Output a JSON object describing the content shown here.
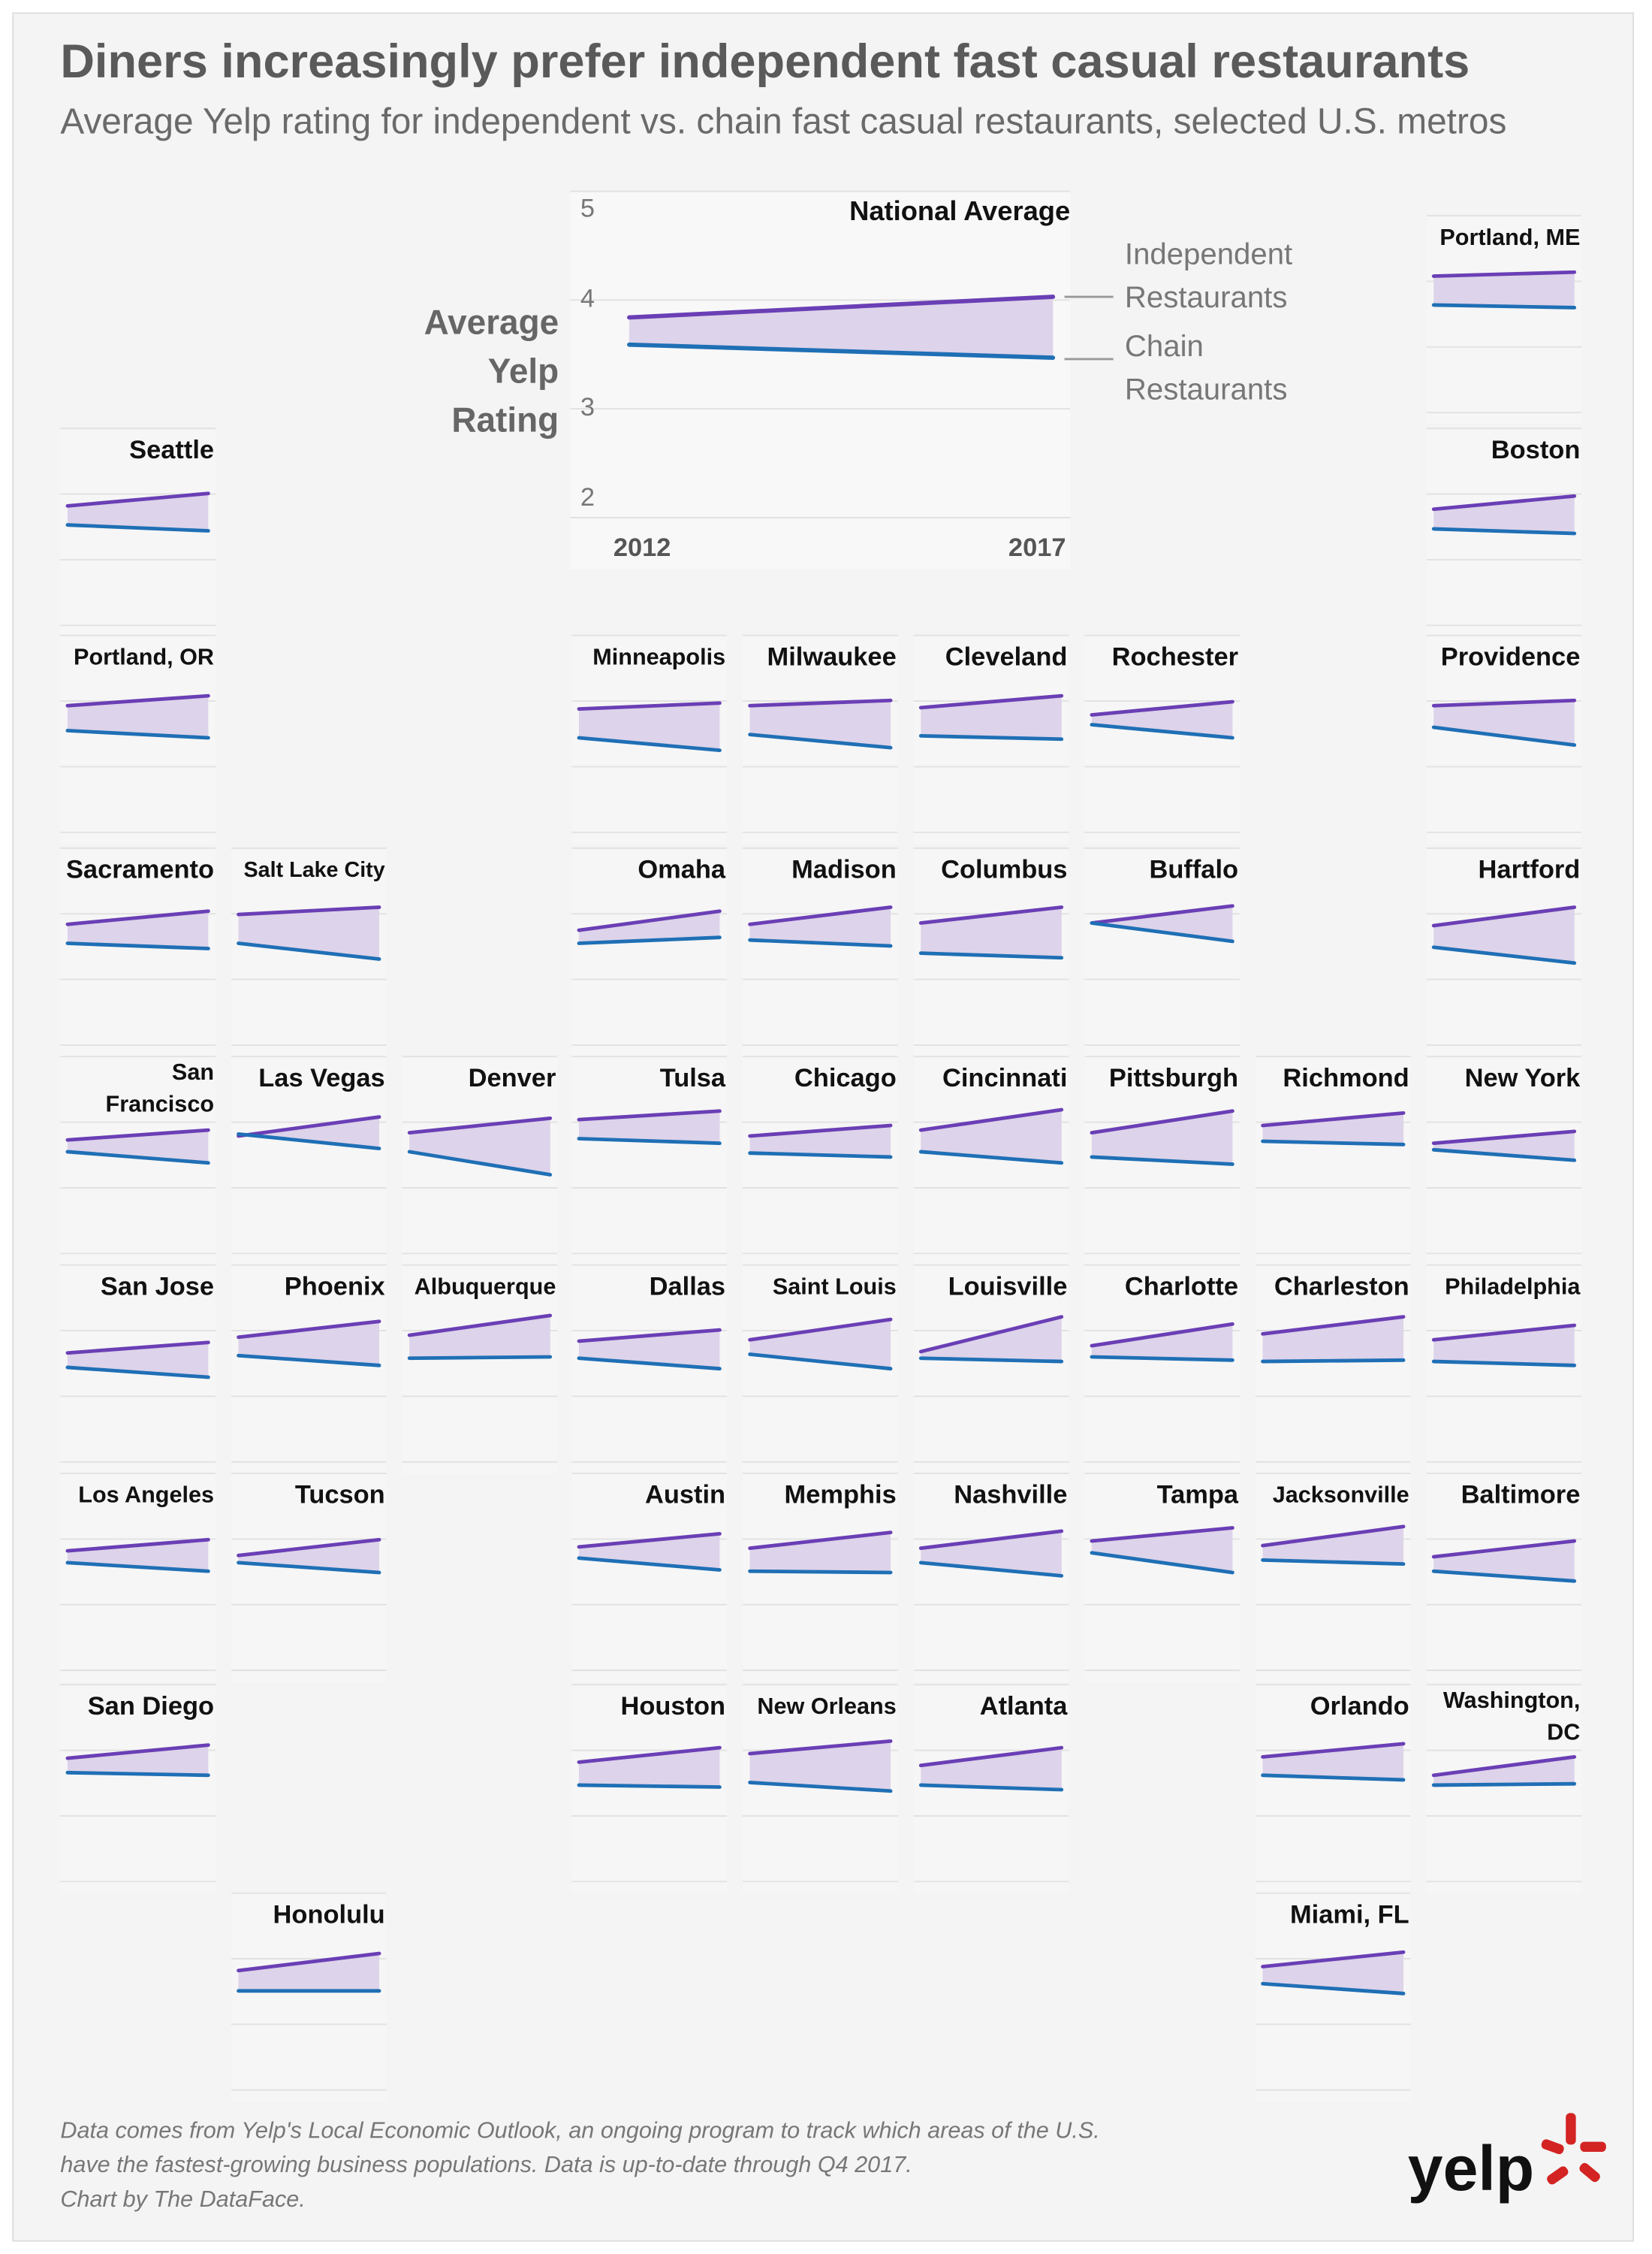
{
  "chart_data": {
    "type": "line",
    "title": "Diners increasingly prefer independent fast casual restaurants",
    "subtitle": "Average Yelp rating for independent vs. chain fast casual restaurants, selected U.S. metros",
    "ylabel": "Average Yelp Rating",
    "x": [
      "2012",
      "2017"
    ],
    "ylim": [
      2,
      5
    ],
    "yticks": [
      2,
      3,
      4,
      5
    ],
    "series": [
      {
        "name": "Independent Restaurants",
        "color": "#6a3fb5"
      },
      {
        "name": "Chain Restaurants",
        "color": "#1f6fb5"
      }
    ],
    "panels": [
      {
        "title": "National Average",
        "values": [
          [
            3.84,
            4.03
          ],
          [
            3.59,
            3.47
          ]
        ]
      },
      {
        "title": "Portland, ME",
        "values": [
          [
            4.08,
            4.14
          ],
          [
            3.64,
            3.6
          ]
        ]
      },
      {
        "title": "Seattle",
        "values": [
          [
            3.82,
            4.01
          ],
          [
            3.53,
            3.44
          ]
        ]
      },
      {
        "title": "Boston",
        "values": [
          [
            3.77,
            3.97
          ],
          [
            3.47,
            3.4
          ]
        ]
      },
      {
        "title": "Portland, OR",
        "values": [
          [
            3.93,
            4.08
          ],
          [
            3.55,
            3.44
          ]
        ]
      },
      {
        "title": "Minneapolis",
        "values": [
          [
            3.88,
            3.97
          ],
          [
            3.44,
            3.25
          ]
        ]
      },
      {
        "title": "Milwaukee",
        "values": [
          [
            3.93,
            4.01
          ],
          [
            3.49,
            3.29
          ]
        ]
      },
      {
        "title": "Cleveland",
        "values": [
          [
            3.9,
            4.08
          ],
          [
            3.47,
            3.42
          ]
        ]
      },
      {
        "title": "Rochester",
        "values": [
          [
            3.79,
            3.99
          ],
          [
            3.64,
            3.44
          ]
        ]
      },
      {
        "title": "Providence",
        "values": [
          [
            3.93,
            4.01
          ],
          [
            3.6,
            3.33
          ]
        ]
      },
      {
        "title": "Sacramento",
        "values": [
          [
            3.84,
            4.04
          ],
          [
            3.55,
            3.47
          ]
        ]
      },
      {
        "title": "Salt Lake City",
        "values": [
          [
            3.99,
            4.1
          ],
          [
            3.55,
            3.31
          ]
        ]
      },
      {
        "title": "Omaha",
        "values": [
          [
            3.75,
            4.04
          ],
          [
            3.55,
            3.64
          ]
        ]
      },
      {
        "title": "Madison",
        "values": [
          [
            3.84,
            4.1
          ],
          [
            3.6,
            3.51
          ]
        ]
      },
      {
        "title": "Columbus",
        "values": [
          [
            3.86,
            4.1
          ],
          [
            3.4,
            3.33
          ]
        ]
      },
      {
        "title": "Buffalo",
        "values": [
          [
            3.86,
            4.12
          ],
          [
            3.86,
            3.58
          ]
        ]
      },
      {
        "title": "Hartford",
        "values": [
          [
            3.82,
            4.1
          ],
          [
            3.49,
            3.25
          ]
        ]
      },
      {
        "title": "San Francisco",
        "values": [
          [
            3.73,
            3.88
          ],
          [
            3.55,
            3.38
          ]
        ]
      },
      {
        "title": "Las Vegas",
        "values": [
          [
            3.79,
            4.08
          ],
          [
            3.82,
            3.6
          ]
        ]
      },
      {
        "title": "Denver",
        "values": [
          [
            3.84,
            4.06
          ],
          [
            3.55,
            3.2
          ]
        ]
      },
      {
        "title": "Tulsa",
        "values": [
          [
            4.04,
            4.17
          ],
          [
            3.75,
            3.68
          ]
        ]
      },
      {
        "title": "Chicago",
        "values": [
          [
            3.79,
            3.95
          ],
          [
            3.53,
            3.47
          ]
        ]
      },
      {
        "title": "Cincinnati",
        "values": [
          [
            3.88,
            4.19
          ],
          [
            3.55,
            3.38
          ]
        ]
      },
      {
        "title": "Pittsburgh",
        "values": [
          [
            3.84,
            4.17
          ],
          [
            3.47,
            3.36
          ]
        ]
      },
      {
        "title": "Richmond",
        "values": [
          [
            3.95,
            4.14
          ],
          [
            3.71,
            3.66
          ]
        ]
      },
      {
        "title": "New York",
        "values": [
          [
            3.68,
            3.86
          ],
          [
            3.58,
            3.42
          ]
        ]
      },
      {
        "title": "San Jose",
        "values": [
          [
            3.66,
            3.82
          ],
          [
            3.44,
            3.29
          ]
        ]
      },
      {
        "title": "Phoenix",
        "values": [
          [
            3.9,
            4.14
          ],
          [
            3.62,
            3.47
          ]
        ]
      },
      {
        "title": "Albuquerque",
        "values": [
          [
            3.93,
            4.23
          ],
          [
            3.58,
            3.6
          ]
        ]
      },
      {
        "title": "Dallas",
        "values": [
          [
            3.84,
            4.01
          ],
          [
            3.58,
            3.42
          ]
        ]
      },
      {
        "title": "Saint Louis",
        "values": [
          [
            3.86,
            4.17
          ],
          [
            3.64,
            3.42
          ]
        ]
      },
      {
        "title": "Louisville",
        "values": [
          [
            3.68,
            4.21
          ],
          [
            3.58,
            3.53
          ]
        ]
      },
      {
        "title": "Charlotte",
        "values": [
          [
            3.77,
            4.1
          ],
          [
            3.6,
            3.55
          ]
        ]
      },
      {
        "title": "Charleston",
        "values": [
          [
            3.95,
            4.21
          ],
          [
            3.53,
            3.55
          ]
        ]
      },
      {
        "title": "Philadelphia",
        "values": [
          [
            3.86,
            4.08
          ],
          [
            3.53,
            3.47
          ]
        ]
      },
      {
        "title": "Los Angeles",
        "values": [
          [
            3.82,
            3.99
          ],
          [
            3.64,
            3.51
          ]
        ]
      },
      {
        "title": "Tucson",
        "values": [
          [
            3.75,
            3.99
          ],
          [
            3.64,
            3.49
          ]
        ]
      },
      {
        "title": "Austin",
        "values": [
          [
            3.88,
            4.08
          ],
          [
            3.71,
            3.53
          ]
        ]
      },
      {
        "title": "Memphis",
        "values": [
          [
            3.86,
            4.1
          ],
          [
            3.51,
            3.49
          ]
        ]
      },
      {
        "title": "Nashville",
        "values": [
          [
            3.86,
            4.12
          ],
          [
            3.64,
            3.44
          ]
        ]
      },
      {
        "title": "Tampa",
        "values": [
          [
            3.97,
            4.17
          ],
          [
            3.79,
            3.49
          ]
        ]
      },
      {
        "title": "Jacksonville",
        "values": [
          [
            3.9,
            4.19
          ],
          [
            3.68,
            3.62
          ]
        ]
      },
      {
        "title": "Baltimore",
        "values": [
          [
            3.73,
            3.97
          ],
          [
            3.51,
            3.36
          ]
        ]
      },
      {
        "title": "San Diego",
        "values": [
          [
            3.88,
            4.08
          ],
          [
            3.66,
            3.62
          ]
        ]
      },
      {
        "title": "Houston",
        "values": [
          [
            3.82,
            4.04
          ],
          [
            3.47,
            3.44
          ]
        ]
      },
      {
        "title": "New Orleans",
        "values": [
          [
            3.95,
            4.14
          ],
          [
            3.51,
            3.38
          ]
        ]
      },
      {
        "title": "Atlanta",
        "values": [
          [
            3.77,
            4.04
          ],
          [
            3.47,
            3.4
          ]
        ]
      },
      {
        "title": "Orlando",
        "values": [
          [
            3.9,
            4.1
          ],
          [
            3.62,
            3.55
          ]
        ]
      },
      {
        "title": "Washington, DC",
        "values": [
          [
            3.62,
            3.9
          ],
          [
            3.47,
            3.49
          ]
        ]
      },
      {
        "title": "Honolulu",
        "values": [
          [
            3.82,
            4.08
          ],
          [
            3.51,
            3.51
          ]
        ]
      },
      {
        "title": "Miami, FL",
        "values": [
          [
            3.88,
            4.1
          ],
          [
            3.62,
            3.47
          ]
        ]
      }
    ],
    "note": [
      "Data comes from Yelp's Local Economic Outlook, an ongoing program to track which areas of the U.S.",
      "have the fastest-growing business populations. Data is up-to-date through Q4 2017.",
      "Chart by The DataFace."
    ],
    "logo": "yelp"
  }
}
